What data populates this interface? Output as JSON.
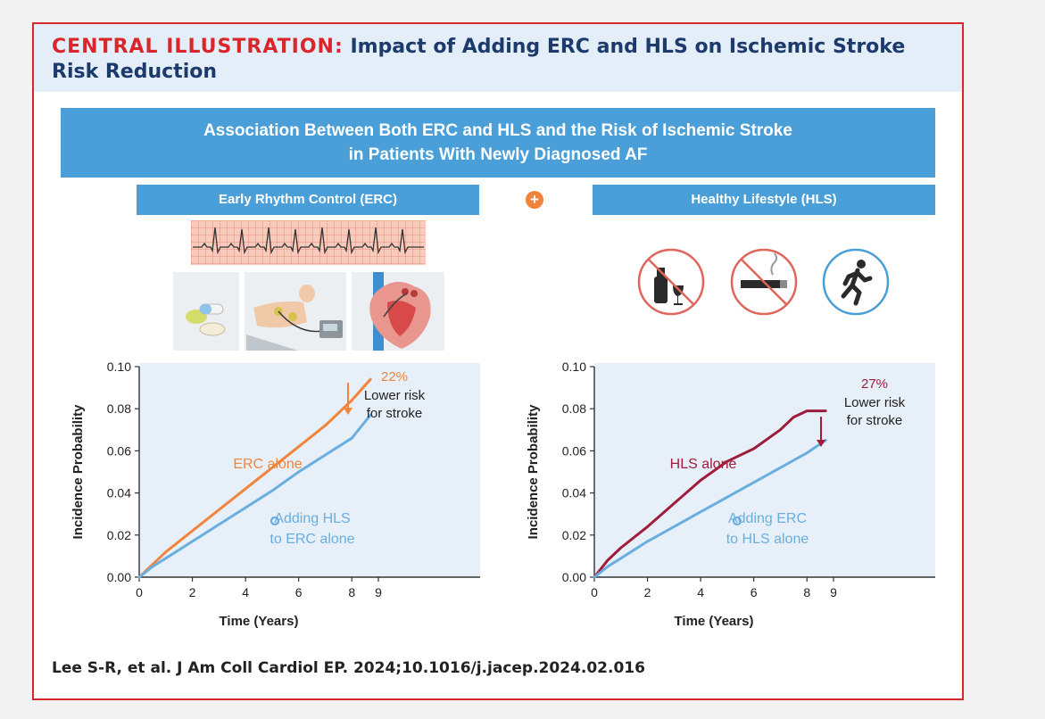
{
  "header": {
    "title_prefix": "CENTRAL ILLUSTRATION:",
    "title_rest": "Impact of Adding ERC and HLS on Ischemic Stroke Risk Reduction"
  },
  "banner": {
    "line1": "Association Between Both ERC and HLS and the Risk of Ischemic Stroke",
    "line2": "in Patients With Newly Diagnosed AF"
  },
  "left_panel": {
    "label": "Early Rhythm Control (ERC)"
  },
  "right_panel": {
    "label": "Healthy Lifestyle (HLS)"
  },
  "plus_symbol": "+",
  "icons": {
    "erc": [
      "ecg-strip-icon",
      "pills-icon",
      "cardioversion-icon",
      "ablation-heart-icon"
    ],
    "hls": [
      "no-alcohol-icon",
      "no-smoking-icon",
      "running-icon"
    ]
  },
  "colors": {
    "accent_red": "#d9262b",
    "title_navy": "#1d3a6d",
    "banner_blue": "#4a9fd8",
    "chart_bg": "#e7f0f8",
    "erc_orange": "#f0843c",
    "combined_blue": "#6aaedf",
    "hls_crimson": "#a01c3c"
  },
  "chart_data": [
    {
      "type": "line",
      "xlabel": "Time (Years)",
      "ylabel": "Incidence Probability",
      "xlim": [
        0,
        9
      ],
      "ylim": [
        0,
        0.1
      ],
      "xticks": [
        0,
        2,
        4,
        6,
        8,
        9
      ],
      "yticks": [
        "0.00",
        "0.02",
        "0.04",
        "0.06",
        "0.08",
        "0.10"
      ],
      "series": [
        {
          "name": "ERC alone",
          "color": "#f0843c",
          "x": [
            0,
            0.5,
            1,
            2,
            3,
            4,
            5,
            6,
            7,
            8,
            8.7
          ],
          "y": [
            0,
            0.006,
            0.012,
            0.022,
            0.032,
            0.042,
            0.052,
            0.062,
            0.072,
            0.084,
            0.094
          ]
        },
        {
          "name": "Adding HLS to ERC alone",
          "color": "#6aaedf",
          "x": [
            0,
            0.5,
            1,
            2,
            3,
            4,
            5,
            6,
            7,
            8,
            8.7
          ],
          "y": [
            0,
            0.005,
            0.009,
            0.017,
            0.025,
            0.033,
            0.041,
            0.05,
            0.058,
            0.066,
            0.077
          ]
        }
      ],
      "annotation": {
        "percent": "22%",
        "line1": "Lower risk",
        "line2": "for stroke"
      },
      "label_single": "ERC alone",
      "label_combined_1": "Adding HLS",
      "label_combined_2": "to ERC alone"
    },
    {
      "type": "line",
      "xlabel": "Time (Years)",
      "ylabel": "Incidence Probability",
      "xlim": [
        0,
        9
      ],
      "ylim": [
        0,
        0.1
      ],
      "xticks": [
        0,
        2,
        4,
        6,
        8,
        9
      ],
      "yticks": [
        "0.00",
        "0.02",
        "0.04",
        "0.06",
        "0.08",
        "0.10"
      ],
      "series": [
        {
          "name": "HLS alone",
          "color": "#a01c3c",
          "x": [
            0,
            0.5,
            1,
            2,
            3,
            4,
            5,
            6,
            7,
            7.5,
            8,
            8.7
          ],
          "y": [
            0,
            0.008,
            0.014,
            0.024,
            0.035,
            0.046,
            0.055,
            0.061,
            0.07,
            0.076,
            0.079,
            0.079
          ]
        },
        {
          "name": "Adding ERC to HLS alone",
          "color": "#6aaedf",
          "x": [
            0,
            0.5,
            1,
            2,
            3,
            4,
            5,
            6,
            7,
            8,
            8.7
          ],
          "y": [
            0,
            0.005,
            0.009,
            0.017,
            0.024,
            0.031,
            0.038,
            0.045,
            0.052,
            0.059,
            0.065
          ]
        }
      ],
      "annotation": {
        "percent": "27%",
        "line1": "Lower risk",
        "line2": "for stroke"
      },
      "label_single": "HLS alone",
      "label_combined_1": "Adding ERC",
      "label_combined_2": "to HLS alone"
    }
  ],
  "citation": "Lee S-R, et al. J Am Coll Cardiol EP. 2024;10.1016/j.jacep.2024.02.016"
}
